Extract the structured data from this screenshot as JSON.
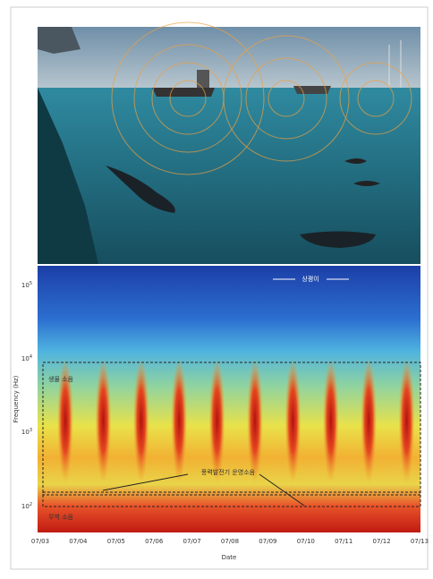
{
  "figure": {
    "spectrogram": {
      "y_label": "Frequency (Hz)",
      "x_label": "Date",
      "y_ticks": [
        {
          "base": "10",
          "exp": "5"
        },
        {
          "base": "10",
          "exp": "4"
        },
        {
          "base": "10",
          "exp": "3"
        },
        {
          "base": "10",
          "exp": "2"
        }
      ],
      "x_ticks": [
        "07/03",
        "07/04",
        "07/05",
        "07/06",
        "07/07",
        "07/08",
        "07/09",
        "07/10",
        "07/11",
        "07/12",
        "07/13"
      ],
      "annotations": {
        "porpoise": "상괭이",
        "biological_noise": "생물 소음",
        "wind_turbine_noise": "풍력발전기 운영소음",
        "low_noise": "무역 소음"
      }
    }
  }
}
